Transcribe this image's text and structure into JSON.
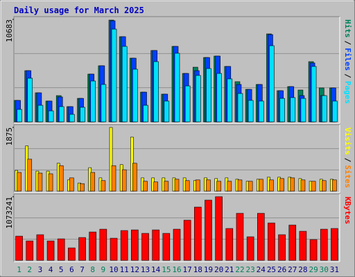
{
  "title": "Daily usage for March 2025",
  "chart_data": [
    {
      "type": "bar",
      "ylim": [
        0,
        10683
      ],
      "yticks": [
        10683
      ],
      "legend_separator": "/",
      "series": [
        {
          "name": "Hits",
          "color": "#00805c",
          "values": [
            2240,
            5340,
            3030,
            2170,
            2740,
            1590,
            2450,
            4980,
            5850,
            10610,
            8880,
            6640,
            3100,
            7440,
            2890,
            7870,
            5050,
            5700,
            6710,
            6860,
            5780,
            4190,
            3390,
            3900,
            9170,
            3250,
            3680,
            3320,
            6280,
            3540,
            3540
          ]
        },
        {
          "name": "Files",
          "color": "#0040ff",
          "values": [
            2240,
            5340,
            3030,
            2170,
            2600,
            1590,
            2450,
            4980,
            5850,
            10540,
            8880,
            6640,
            3100,
            7440,
            2890,
            7870,
            5050,
            5340,
            6710,
            6860,
            5780,
            3900,
            3390,
            3900,
            9100,
            3250,
            3680,
            2740,
            6140,
            2740,
            3540
          ]
        },
        {
          "name": "Pages",
          "color": "#00e0ff",
          "values": [
            1300,
            4550,
            1730,
            1150,
            1590,
            790,
            1520,
            4260,
            3900,
            9670,
            7870,
            5490,
            1730,
            6280,
            2170,
            7150,
            3750,
            4840,
            5560,
            5050,
            4480,
            2960,
            2240,
            2170,
            7940,
            2450,
            2530,
            2450,
            5780,
            2740,
            2170
          ]
        }
      ]
    },
    {
      "type": "bar",
      "ylim": [
        0,
        1875
      ],
      "yticks": [
        1875
      ],
      "legend_separator": "/",
      "series": [
        {
          "name": "Visits",
          "color": "#ffff00",
          "values": [
            610,
            1330,
            590,
            590,
            820,
            330,
            240,
            690,
            390,
            1875,
            780,
            1590,
            390,
            390,
            390,
            390,
            390,
            310,
            390,
            370,
            390,
            350,
            290,
            350,
            410,
            410,
            410,
            370,
            290,
            350,
            350
          ]
        },
        {
          "name": "Sites",
          "color": "#ff8000",
          "values": [
            550,
            940,
            530,
            510,
            750,
            390,
            220,
            550,
            310,
            750,
            630,
            820,
            290,
            270,
            290,
            350,
            310,
            330,
            330,
            290,
            290,
            330,
            290,
            350,
            330,
            370,
            390,
            330,
            290,
            310,
            330
          ]
        }
      ]
    },
    {
      "type": "bar",
      "ylim": [
        0,
        1073241
      ],
      "yticks": [
        1073241
      ],
      "categories": [
        "1",
        "2",
        "3",
        "4",
        "5",
        "6",
        "7",
        "8",
        "9",
        "10",
        "11",
        "12",
        "13",
        "14",
        "15",
        "16",
        "17",
        "18",
        "19",
        "20",
        "21",
        "22",
        "23",
        "24",
        "25",
        "26",
        "27",
        "28",
        "29",
        "30",
        "31"
      ],
      "category_colors": [
        "#00805c",
        "#00805c",
        "#000080",
        "#000080",
        "#000080",
        "#000080",
        "#000080",
        "#00805c",
        "#00805c",
        "#000080",
        "#000080",
        "#000080",
        "#000080",
        "#000080",
        "#00805c",
        "#00805c",
        "#000080",
        "#000080",
        "#000080",
        "#000080",
        "#000080",
        "#00805c",
        "#00805c",
        "#000080",
        "#000080",
        "#000080",
        "#000080",
        "#000080",
        "#00805c",
        "#00805c",
        "#000080"
      ],
      "series": [
        {
          "name": "KBytes",
          "color": "#ff0000",
          "values": [
            408000,
            327000,
            432000,
            327000,
            362000,
            210000,
            385000,
            478000,
            525000,
            373000,
            502000,
            513000,
            455000,
            513000,
            455000,
            525000,
            677000,
            898000,
            1015000,
            1073241,
            537000,
            793000,
            397000,
            793000,
            630000,
            432000,
            595000,
            490000,
            350000,
            525000,
            537000
          ]
        }
      ]
    }
  ]
}
